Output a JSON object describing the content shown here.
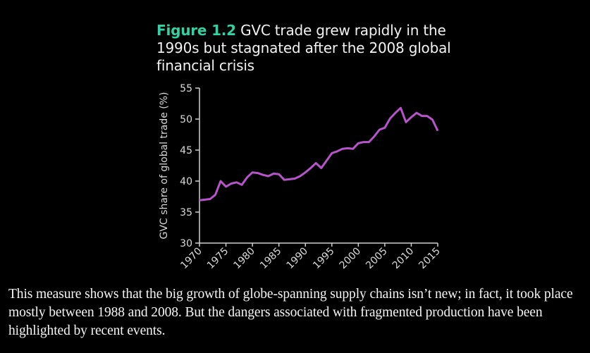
{
  "figure": {
    "number": "Figure 1.2",
    "title": "GVC trade grew rapidly in the 1990s but stagnated after the 2008 global financial crisis",
    "accent_color": "#2fd3a6"
  },
  "caption": "This measure shows that the big growth of  globe-spanning supply chains isn’t new; in fact, it took place mostly between 1988 and 2008. But the dangers associated with fragmented production have been highlighted by recent events.",
  "chart_data": {
    "type": "line",
    "title": "GVC trade grew rapidly in the 1990s but stagnated after the 2008 global financial crisis",
    "xlabel": "",
    "ylabel": "GVC share of global trade (%)",
    "xlim": [
      1970,
      2015
    ],
    "ylim": [
      30,
      55
    ],
    "xticks": [
      "1970",
      "1975",
      "1980",
      "1985",
      "1990",
      "1995",
      "2000",
      "2005",
      "2010",
      "2015"
    ],
    "yticks": [
      "30",
      "35",
      "40",
      "45",
      "50",
      "55"
    ],
    "grid": false,
    "legend": "none",
    "line_color": "#b655c9",
    "x": [
      1970,
      1971,
      1972,
      1973,
      1974,
      1975,
      1976,
      1977,
      1978,
      1979,
      1980,
      1981,
      1982,
      1983,
      1984,
      1985,
      1986,
      1987,
      1988,
      1989,
      1990,
      1991,
      1992,
      1993,
      1994,
      1995,
      1996,
      1997,
      1998,
      1999,
      2000,
      2001,
      2002,
      2003,
      2004,
      2005,
      2006,
      2007,
      2008,
      2009,
      2010,
      2011,
      2012,
      2013,
      2014,
      2015
    ],
    "series": [
      {
        "name": "GVC share of global trade",
        "values": [
          36.9,
          37.0,
          37.1,
          37.8,
          40.0,
          39.1,
          39.6,
          39.8,
          39.4,
          40.6,
          41.4,
          41.3,
          41.0,
          40.8,
          41.2,
          41.1,
          40.2,
          40.3,
          40.4,
          40.8,
          41.4,
          42.1,
          42.9,
          42.1,
          43.3,
          44.5,
          44.8,
          45.2,
          45.3,
          45.2,
          46.1,
          46.3,
          46.3,
          47.2,
          48.3,
          48.6,
          50.1,
          51.0,
          51.8,
          49.5,
          50.3,
          51.0,
          50.5,
          50.5,
          49.9,
          48.1
        ]
      }
    ]
  }
}
